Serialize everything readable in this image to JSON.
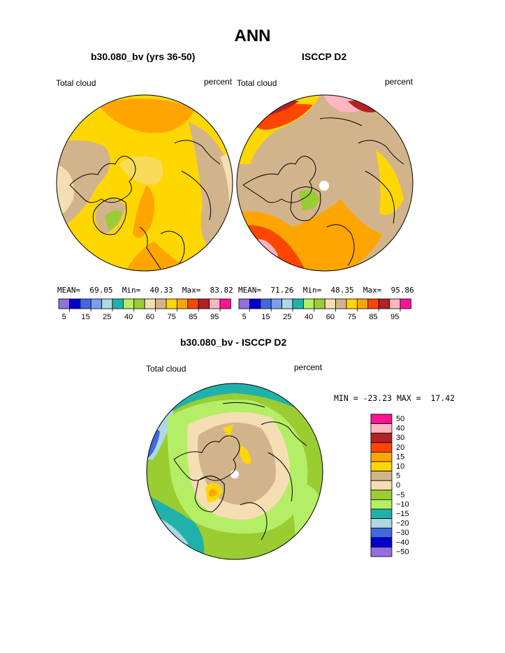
{
  "title": "ANN",
  "panels": [
    {
      "title": "b30.080_bv (yrs 36-50)",
      "left_label": "Total cloud",
      "right_label": "percent",
      "stats": {
        "mean_label": "MEAN=",
        "mean": "69.05",
        "min_label": "Min=",
        "min": "40.33",
        "max_label": "Max=",
        "max": "83.82"
      }
    },
    {
      "title": "ISCCP D2",
      "left_label": "Total cloud",
      "right_label": "percent",
      "stats": {
        "mean_label": "MEAN=",
        "mean": "71.26",
        "min_label": "Min=",
        "min": "48.35",
        "max_label": "Max=",
        "max": "95.86"
      }
    }
  ],
  "diff_panel": {
    "title": "b30.080_bv - ISCCP D2",
    "left_label": "Total cloud",
    "right_label": "percent",
    "range_text": "MIN = -23.23 MAX =  17.42"
  },
  "chart_data": [
    {
      "type": "heatmap",
      "name": "model",
      "projection": "north-polar-stereographic",
      "title": "b30.080_bv (yrs 36-50)",
      "variable": "Total cloud",
      "units": "percent",
      "mean": 69.05,
      "min": 40.33,
      "max": 83.82,
      "colorbar": {
        "tick_labels": [
          "5",
          "15",
          "25",
          "40",
          "60",
          "75",
          "85",
          "95"
        ],
        "colors": [
          "#9370DB",
          "#0000CD",
          "#4169E1",
          "#7B9FEB",
          "#ADD8E6",
          "#20B2AA",
          "#B4EE66",
          "#9ACD32",
          "#F5DEB3",
          "#D2B48C",
          "#FFD700",
          "#FFA500",
          "#FF4500",
          "#B22222",
          "#FFB6C1",
          "#FF1493"
        ]
      }
    },
    {
      "type": "heatmap",
      "name": "observations",
      "projection": "north-polar-stereographic",
      "title": "ISCCP D2",
      "variable": "Total cloud",
      "units": "percent",
      "mean": 71.26,
      "min": 48.35,
      "max": 95.86,
      "colorbar": {
        "tick_labels": [
          "5",
          "15",
          "25",
          "40",
          "60",
          "75",
          "85",
          "95"
        ],
        "colors": [
          "#9370DB",
          "#0000CD",
          "#4169E1",
          "#7B9FEB",
          "#ADD8E6",
          "#20B2AA",
          "#B4EE66",
          "#9ACD32",
          "#F5DEB3",
          "#D2B48C",
          "#FFD700",
          "#FFA500",
          "#FF4500",
          "#B22222",
          "#FFB6C1",
          "#FF1493"
        ]
      }
    },
    {
      "type": "heatmap",
      "name": "difference",
      "projection": "north-polar-stereographic",
      "title": "b30.080_bv - ISCCP D2",
      "variable": "Total cloud",
      "units": "percent",
      "min": -23.23,
      "max": 17.42,
      "colorbar": {
        "tick_labels": [
          "50",
          "40",
          "30",
          "20",
          "15",
          "10",
          "5",
          "0",
          "−5",
          "−10",
          "−15",
          "−20",
          "−30",
          "−40",
          "−50"
        ],
        "colors": [
          "#FF1493",
          "#FFB6C1",
          "#B22222",
          "#FF4500",
          "#FFA500",
          "#FFD700",
          "#D2B48C",
          "#F5DEB3",
          "#9ACD32",
          "#B4EE66",
          "#20B2AA",
          "#ADD8E6",
          "#4169E1",
          "#0000CD",
          "#9370DB"
        ]
      }
    }
  ]
}
